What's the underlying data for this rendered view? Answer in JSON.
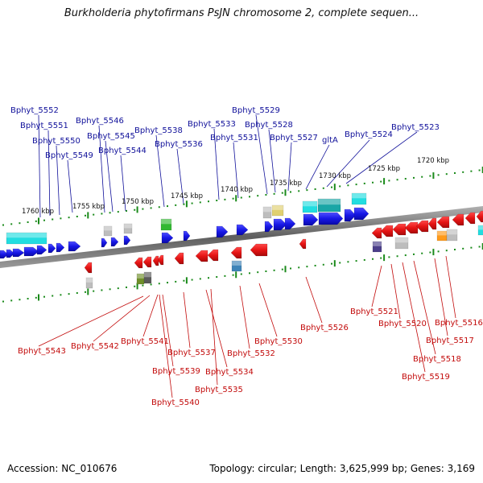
{
  "title": "Burkholderia phytofirmans PsJN chromosome 2, complete sequen...",
  "footer": {
    "accession": "Accession: NC_010676",
    "summary": "Topology: circular; Length: 3,625,999 bp; Genes: 3,169"
  },
  "colors": {
    "forward_gene": "#1717e6",
    "reverse_gene": "#e61414",
    "label_top": "#10109a",
    "label_bottom": "#c20a0a",
    "tick": "#1a8a1a",
    "axis": "#707070",
    "rna_cyan": "#22dde0",
    "rna_teal": "#1aa6a6",
    "rna_gray": "#bdbdbd",
    "rna_green": "#33b833",
    "rna_yellow": "#e0d070",
    "rna_olive": "#6f8f2a",
    "rna_darkgray": "#5a5a5a",
    "rna_steel": "#3f84b8",
    "rna_purple": "#4b3f8a",
    "rna_orange": "#ff9a1a"
  },
  "scale_labels": [
    "1760 kbp",
    "1755 kbp",
    "1750 kbp",
    "1745 kbp",
    "1740 kbp",
    "1735 kbp",
    "1730 kbp",
    "1725 kbp",
    "1720 kbp"
  ],
  "top_genes": [
    "Bphyt_5552",
    "Bphyt_5551",
    "Bphyt_5550",
    "Bphyt_5549",
    "Bphyt_5546",
    "Bphyt_5545",
    "Bphyt_5544",
    "Bphyt_5538",
    "Bphyt_5536",
    "Bphyt_5533",
    "Bphyt_5531",
    "Bphyt_5529",
    "Bphyt_5528",
    "Bphyt_5527",
    "gltA",
    "Bphyt_5524",
    "Bphyt_5523"
  ],
  "bottom_genes": [
    "Bphyt_5543",
    "Bphyt_5542",
    "Bphyt_5541",
    "Bphyt_5537",
    "Bphyt_5539",
    "Bphyt_5540",
    "Bphyt_5534",
    "Bphyt_5535",
    "Bphyt_5532",
    "Bphyt_5530",
    "Bphyt_5526",
    "Bphyt_5521",
    "Bphyt_5520",
    "Bphyt_5519",
    "Bphyt_5518",
    "Bphyt_5517",
    "Bphyt_5516"
  ]
}
